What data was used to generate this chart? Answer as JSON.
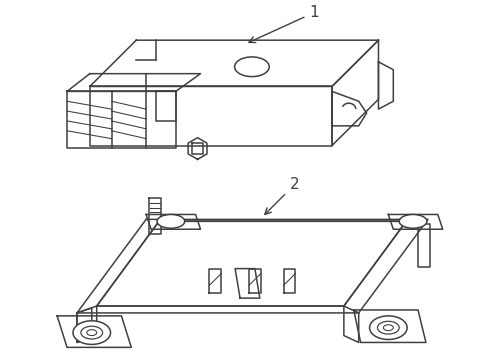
{
  "background_color": "#ffffff",
  "line_color": "#404040",
  "line_width": 1.1,
  "label1": "1",
  "label2": "2",
  "fig_width": 4.9,
  "fig_height": 3.6,
  "dpi": 100
}
